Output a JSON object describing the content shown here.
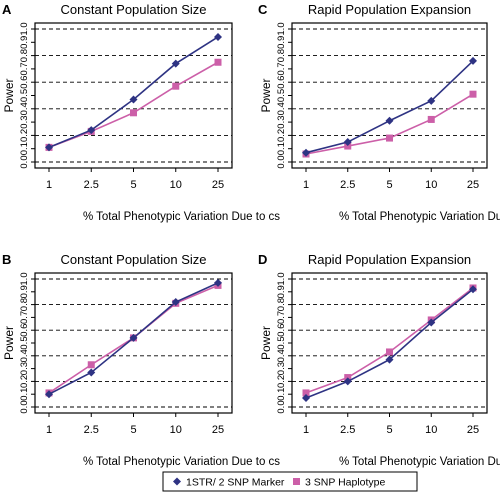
{
  "chart_data": [
    {
      "type": "line",
      "panel_label": "A",
      "title": "Constant Population Size",
      "xlabel": "% Total Phenotypic Variation Due to cs",
      "ylabel": "Power",
      "categories": [
        "1",
        "2.5",
        "5",
        "10",
        "25"
      ],
      "yticks": [
        "0.0",
        "0.1",
        "0.2",
        "0.3",
        "0.4",
        "0.5",
        "0.6",
        "0.7",
        "0.8",
        "0.9",
        "1.0"
      ],
      "ylim": [
        0,
        1
      ],
      "grid": "horizontal dashed at 0, 0.2, 0.4, 0.6, 0.8, 1.0",
      "series": [
        {
          "name": "1STR/ 2 SNP Marker",
          "values": [
            0.11,
            0.24,
            0.47,
            0.74,
            0.94
          ]
        },
        {
          "name": "3 SNP Haplotype",
          "values": [
            0.11,
            0.23,
            0.37,
            0.57,
            0.75
          ]
        }
      ]
    },
    {
      "type": "line",
      "panel_label": "C",
      "title": "Rapid Population Expansion",
      "xlabel": "% Total Phenotypic Variation Due to cs",
      "ylabel": "Power",
      "categories": [
        "1",
        "2.5",
        "5",
        "10",
        "25"
      ],
      "yticks": [
        "0.0",
        "0.1",
        "0.2",
        "0.3",
        "0.4",
        "0.5",
        "0.6",
        "0.7",
        "0.8",
        "0.9",
        "1.0"
      ],
      "ylim": [
        0,
        1
      ],
      "grid": "horizontal dashed at 0, 0.2, 0.4, 0.6, 0.8, 1.0",
      "series": [
        {
          "name": "1STR/ 2 SNP Marker",
          "values": [
            0.07,
            0.15,
            0.31,
            0.46,
            0.76
          ]
        },
        {
          "name": "3 SNP Haplotype",
          "values": [
            0.06,
            0.12,
            0.18,
            0.32,
            0.51
          ]
        }
      ]
    },
    {
      "type": "line",
      "panel_label": "B",
      "title": "Constant Population Size",
      "xlabel": "% Total Phenotypic Variation Due to cs",
      "ylabel": "Power",
      "categories": [
        "1",
        "2.5",
        "5",
        "10",
        "25"
      ],
      "yticks": [
        "0.0",
        "0.1",
        "0.2",
        "0.3",
        "0.4",
        "0.5",
        "0.6",
        "0.7",
        "0.8",
        "0.9",
        "1.0"
      ],
      "ylim": [
        0,
        1
      ],
      "grid": "horizontal dashed at 0, 0.2, 0.4, 0.6, 0.8, 1.0",
      "series": [
        {
          "name": "1STR/ 2 SNP Marker",
          "values": [
            0.1,
            0.27,
            0.54,
            0.82,
            0.97
          ]
        },
        {
          "name": "3 SNP Haplotype",
          "values": [
            0.11,
            0.33,
            0.54,
            0.81,
            0.95
          ]
        }
      ]
    },
    {
      "type": "line",
      "panel_label": "D",
      "title": "Rapid Population Expansion",
      "xlabel": "% Total Phenotypic Variation Due to cs",
      "ylabel": "Power",
      "categories": [
        "1",
        "2.5",
        "5",
        "10",
        "25"
      ],
      "yticks": [
        "0.0",
        "0.1",
        "0.2",
        "0.3",
        "0.4",
        "0.5",
        "0.6",
        "0.7",
        "0.8",
        "0.9",
        "1.0"
      ],
      "ylim": [
        0,
        1
      ],
      "grid": "horizontal dashed at 0, 0.2, 0.4, 0.6, 0.8, 1.0",
      "series": [
        {
          "name": "1STR/ 2 SNP Marker",
          "values": [
            0.07,
            0.2,
            0.37,
            0.66,
            0.92
          ]
        },
        {
          "name": "3 SNP Haplotype",
          "values": [
            0.11,
            0.23,
            0.43,
            0.68,
            0.93
          ]
        }
      ]
    }
  ],
  "legend": {
    "items": [
      {
        "label": "1STR/ 2 SNP Marker",
        "marker": "diamond",
        "color": "#2e3383"
      },
      {
        "label": "3 SNP Haplotype",
        "marker": "square",
        "color": "#cc5fa8"
      }
    ]
  },
  "colors": {
    "series_1": "#2e3383",
    "series_2": "#cc5fa8"
  }
}
